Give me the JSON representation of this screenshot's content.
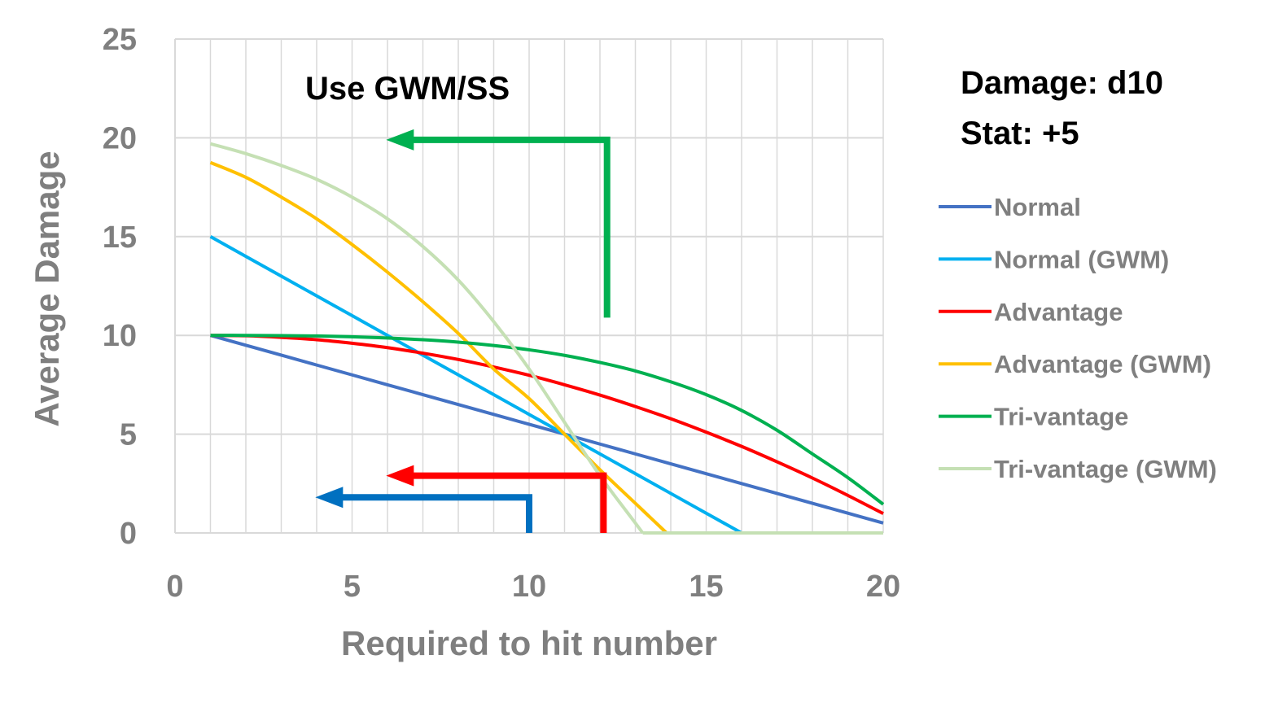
{
  "chart_data": {
    "type": "line",
    "xlabel": "Required to hit number",
    "ylabel": "Average Damage",
    "xlim": [
      0,
      20
    ],
    "ylim": [
      0,
      25
    ],
    "xticks": [
      0,
      5,
      10,
      15,
      20
    ],
    "yticks": [
      0,
      5,
      10,
      15,
      20,
      25
    ],
    "x_minor_step": 1,
    "grid": true,
    "legend_position": "right",
    "annotations": {
      "gwm_label": "Use GWM/SS",
      "damage_label": "Damage: d10",
      "stat_label": "Stat: +5"
    },
    "x": [
      1,
      2,
      3,
      4,
      5,
      6,
      7,
      8,
      9,
      10,
      11,
      12,
      13,
      14,
      15,
      16,
      17,
      18,
      19,
      20
    ],
    "series": [
      {
        "name": "Normal",
        "color": "#4472c4",
        "values": [
          10,
          9.5,
          9,
          8.5,
          8,
          7.5,
          7,
          6.5,
          6,
          5.5,
          5,
          4.5,
          4,
          3.5,
          3,
          2.5,
          2,
          1.5,
          1,
          0.5
        ]
      },
      {
        "name": "Normal (GWM)",
        "color": "#00b0f0",
        "values": [
          15,
          14,
          13,
          12,
          11,
          10,
          9,
          8,
          7,
          6,
          5,
          4,
          3,
          2,
          1,
          0,
          0,
          0,
          0,
          0
        ]
      },
      {
        "name": "Advantage",
        "color": "#ff0000",
        "values": [
          10,
          9.98,
          9.9,
          9.78,
          9.6,
          9.38,
          9.1,
          8.78,
          8.4,
          7.98,
          7.5,
          6.98,
          6.4,
          5.78,
          5.1,
          4.38,
          3.6,
          2.78,
          1.9,
          0.98
        ]
      },
      {
        "name": "Advantage (GWM)",
        "color": "#ffc000",
        "values": [
          18.75,
          18.0,
          17.0,
          15.9,
          14.6,
          13.2,
          11.7,
          10.1,
          8.3,
          6.8,
          5.0,
          3.2,
          1.5,
          0,
          0,
          0,
          0,
          0,
          0,
          0
        ]
      },
      {
        "name": "Tri-vantage",
        "color": "#00b050",
        "values": [
          10,
          10,
          9.99,
          9.97,
          9.93,
          9.87,
          9.78,
          9.66,
          9.49,
          9.27,
          8.99,
          8.63,
          8.2,
          7.65,
          7.0,
          6.2,
          5.2,
          4.0,
          2.8,
          1.45
        ]
      },
      {
        "name": "Tri-vantage (GWM)",
        "color": "#c5e0b4",
        "values": [
          19.7,
          19.2,
          18.6,
          17.9,
          17.0,
          15.9,
          14.5,
          12.8,
          10.7,
          8.3,
          5.6,
          2.9,
          0.5,
          0,
          0,
          0,
          0,
          0,
          0,
          0
        ]
      }
    ],
    "arrows": [
      {
        "name": "green-arrow",
        "color": "#00b050",
        "from_x": 12.2,
        "from_y_bottom": 10.9,
        "corner_y": 19.9,
        "to_x": 6.1
      },
      {
        "name": "red-arrow",
        "color": "#ff0000",
        "from_x": 12.1,
        "from_y_bottom": 0,
        "corner_y": 2.9,
        "to_x": 6.1
      },
      {
        "name": "blue-arrow",
        "color": "#0070c0",
        "from_x": 10,
        "from_y_bottom": 0,
        "corner_y": 1.8,
        "to_x": 4.1
      }
    ]
  }
}
